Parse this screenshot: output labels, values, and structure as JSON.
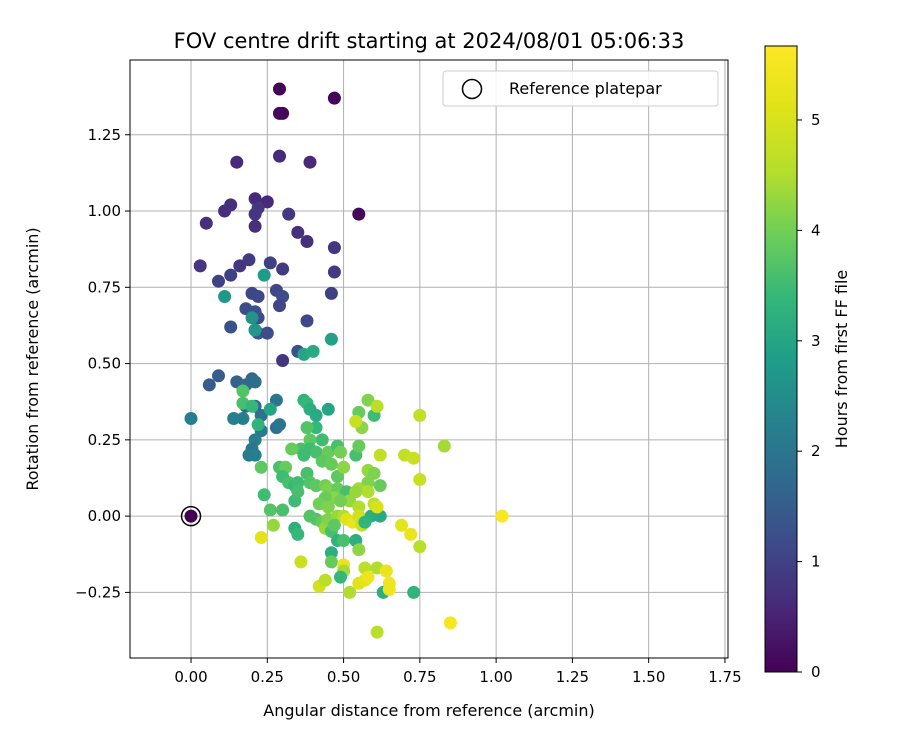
{
  "chart_data": {
    "type": "scatter",
    "title": "FOV centre drift starting at 2024/08/01 05:06:33",
    "xlabel": "Angular distance from reference (arcmin)",
    "ylabel": "Rotation from reference (arcmin)",
    "xlim": [
      -0.2,
      1.76
    ],
    "ylim": [
      -0.465,
      1.495
    ],
    "xticks": [
      0.0,
      0.25,
      0.5,
      0.75,
      1.0,
      1.25,
      1.5,
      1.75
    ],
    "xtick_labels": [
      "0.00",
      "0.25",
      "0.50",
      "0.75",
      "1.00",
      "1.25",
      "1.50",
      "1.75"
    ],
    "yticks": [
      -0.25,
      0.0,
      0.25,
      0.5,
      0.75,
      1.0,
      1.25
    ],
    "ytick_labels": [
      "−0.25",
      "0.00",
      "0.25",
      "0.50",
      "0.75",
      "1.00",
      "1.25"
    ],
    "grid": true,
    "legend": {
      "placement": "top-right",
      "entries": [
        "Reference platepar"
      ]
    },
    "reference_point": {
      "x": 0.0,
      "y": 0.0
    },
    "colorbar": {
      "label": "Hours from first FF file",
      "min": 0,
      "max": 5.67,
      "ticks": [
        0,
        1,
        2,
        3,
        4,
        5
      ],
      "tick_labels": [
        "0",
        "1",
        "2",
        "3",
        "4",
        "5"
      ],
      "colormap": "viridis"
    },
    "series": [
      {
        "points": [
          [
            0.29,
            1.4,
            0.05
          ],
          [
            0.47,
            1.37,
            0.05
          ],
          [
            0.3,
            1.32,
            0.1
          ],
          [
            0.29,
            1.32,
            0.1
          ],
          [
            0.55,
            0.99,
            0.1
          ],
          [
            0.15,
            1.16,
            0.6
          ],
          [
            0.29,
            1.18,
            0.6
          ],
          [
            0.39,
            1.16,
            0.6
          ],
          [
            0.21,
            1.04,
            0.6
          ],
          [
            0.25,
            1.03,
            0.6
          ],
          [
            0.13,
            1.02,
            0.7
          ],
          [
            0.11,
            1.0,
            0.7
          ],
          [
            0.21,
            0.99,
            0.8
          ],
          [
            0.32,
            0.99,
            0.8
          ],
          [
            0.22,
            1.01,
            0.8
          ],
          [
            0.05,
            0.96,
            0.7
          ],
          [
            0.21,
            0.95,
            0.7
          ],
          [
            0.35,
            0.93,
            0.7
          ],
          [
            0.38,
            0.9,
            0.7
          ],
          [
            0.47,
            0.88,
            0.8
          ],
          [
            0.03,
            0.82,
            0.8
          ],
          [
            0.16,
            0.82,
            0.8
          ],
          [
            0.19,
            0.84,
            0.9
          ],
          [
            0.26,
            0.83,
            1.0
          ],
          [
            0.3,
            0.81,
            0.9
          ],
          [
            0.47,
            0.8,
            0.9
          ],
          [
            0.13,
            0.79,
            1.0
          ],
          [
            0.09,
            0.77,
            1.0
          ],
          [
            0.28,
            0.74,
            1.1
          ],
          [
            0.46,
            0.73,
            1.0
          ],
          [
            0.2,
            0.73,
            1.1
          ],
          [
            0.22,
            0.72,
            1.1
          ],
          [
            0.3,
            0.72,
            1.2
          ],
          [
            0.29,
            0.69,
            1.1
          ],
          [
            0.18,
            0.68,
            1.2
          ],
          [
            0.21,
            0.67,
            1.3
          ],
          [
            0.22,
            0.65,
            1.2
          ],
          [
            0.38,
            0.64,
            1.1
          ],
          [
            0.21,
            0.61,
            1.3
          ],
          [
            0.22,
            0.6,
            1.4
          ],
          [
            0.25,
            0.6,
            1.2
          ],
          [
            0.13,
            0.62,
            1.3
          ],
          [
            0.3,
            0.51,
            0.8
          ],
          [
            0.35,
            0.54,
            1.3
          ],
          [
            0.06,
            0.43,
            1.5
          ],
          [
            0.09,
            0.46,
            1.5
          ],
          [
            0.15,
            0.44,
            1.6
          ],
          [
            0.18,
            0.43,
            1.7
          ],
          [
            0.2,
            0.45,
            1.7
          ],
          [
            0.21,
            0.44,
            1.8
          ],
          [
            0.0,
            0.32,
            2.2
          ],
          [
            0.14,
            0.32,
            2.2
          ],
          [
            0.17,
            0.32,
            2.2
          ],
          [
            0.21,
            0.36,
            1.7
          ],
          [
            0.18,
            0.36,
            1.8
          ],
          [
            0.23,
            0.33,
            1.9
          ],
          [
            0.28,
            0.38,
            2.0
          ],
          [
            0.28,
            0.29,
            1.9
          ],
          [
            0.29,
            0.3,
            2.0
          ],
          [
            0.23,
            0.28,
            2.1
          ],
          [
            0.21,
            0.25,
            2.2
          ],
          [
            0.2,
            0.22,
            2.0
          ],
          [
            0.19,
            0.2,
            2.1
          ],
          [
            0.21,
            0.2,
            2.2
          ],
          [
            0.24,
            0.79,
            2.8
          ],
          [
            0.11,
            0.72,
            2.7
          ],
          [
            0.2,
            0.65,
            2.6
          ],
          [
            0.21,
            0.61,
            2.7
          ],
          [
            0.37,
            0.53,
            3.0
          ],
          [
            0.4,
            0.54,
            3.1
          ],
          [
            0.46,
            0.58,
            2.9
          ],
          [
            0.17,
            0.41,
            3.7
          ],
          [
            0.17,
            0.37,
            3.6
          ],
          [
            0.2,
            0.36,
            3.4
          ],
          [
            0.22,
            0.3,
            3.3
          ],
          [
            0.26,
            0.35,
            3.0
          ],
          [
            0.37,
            0.38,
            3.3
          ],
          [
            0.38,
            0.37,
            3.4
          ],
          [
            0.39,
            0.35,
            3.2
          ],
          [
            0.41,
            0.33,
            3.1
          ],
          [
            0.45,
            0.35,
            3.0
          ],
          [
            0.41,
            0.29,
            3.4
          ],
          [
            0.43,
            0.25,
            3.5
          ],
          [
            0.38,
            0.29,
            3.7
          ],
          [
            0.39,
            0.25,
            3.8
          ],
          [
            0.36,
            0.22,
            3.6
          ],
          [
            0.39,
            0.22,
            3.5
          ],
          [
            0.37,
            0.2,
            3.5
          ],
          [
            0.41,
            0.21,
            3.6
          ],
          [
            0.33,
            0.22,
            3.9
          ],
          [
            0.45,
            0.21,
            3.9
          ],
          [
            0.43,
            0.18,
            3.8
          ],
          [
            0.48,
            0.23,
            3.6
          ],
          [
            0.49,
            0.21,
            4.0
          ],
          [
            0.46,
            0.17,
            3.9
          ],
          [
            0.48,
            0.13,
            3.8
          ],
          [
            0.5,
            0.16,
            4.2
          ],
          [
            0.23,
            0.16,
            3.8
          ],
          [
            0.29,
            0.16,
            3.6
          ],
          [
            0.31,
            0.16,
            3.9
          ],
          [
            0.3,
            0.13,
            3.5
          ],
          [
            0.32,
            0.11,
            3.6
          ],
          [
            0.34,
            0.1,
            3.4
          ],
          [
            0.35,
            0.11,
            3.5
          ],
          [
            0.38,
            0.14,
            3.6
          ],
          [
            0.39,
            0.11,
            3.7
          ],
          [
            0.41,
            0.1,
            3.8
          ],
          [
            0.44,
            0.1,
            4.0
          ],
          [
            0.45,
            0.09,
            4.1
          ],
          [
            0.48,
            0.09,
            3.9
          ],
          [
            0.51,
            0.08,
            3.6
          ],
          [
            0.54,
            0.2,
            3.6
          ],
          [
            0.55,
            0.34,
            3.9
          ],
          [
            0.56,
            0.29,
            4.2
          ],
          [
            0.55,
            0.23,
            3.9
          ],
          [
            0.58,
            0.38,
            4.1
          ],
          [
            0.6,
            0.33,
            3.5
          ],
          [
            0.61,
            0.36,
            4.6
          ],
          [
            0.54,
            0.31,
            4.8
          ],
          [
            0.62,
            0.2,
            4.7
          ],
          [
            0.58,
            0.15,
            4.3
          ],
          [
            0.6,
            0.14,
            4.1
          ],
          [
            0.62,
            0.1,
            3.9
          ],
          [
            0.58,
            0.11,
            4.1
          ],
          [
            0.55,
            0.09,
            4.4
          ],
          [
            0.54,
            0.08,
            4.3
          ],
          [
            0.58,
            0.08,
            4.5
          ],
          [
            0.52,
            0.05,
            4.3
          ],
          [
            0.55,
            0.03,
            4.5
          ],
          [
            0.6,
            0.04,
            4.7
          ],
          [
            0.47,
            0.06,
            4.2
          ],
          [
            0.49,
            0.05,
            4.0
          ],
          [
            0.44,
            0.06,
            3.9
          ],
          [
            0.42,
            0.04,
            4.0
          ],
          [
            0.45,
            0.03,
            4.1
          ],
          [
            0.39,
            0.0,
            3.7
          ],
          [
            0.41,
            -0.01,
            3.7
          ],
          [
            0.43,
            -0.02,
            3.9
          ],
          [
            0.44,
            -0.04,
            4.3
          ],
          [
            0.45,
            -0.01,
            4.1
          ],
          [
            0.48,
            0.0,
            4.3
          ],
          [
            0.5,
            0.0,
            4.5
          ],
          [
            0.51,
            -0.01,
            5.1
          ],
          [
            0.53,
            -0.02,
            5.3
          ],
          [
            0.55,
            0.0,
            4.9
          ],
          [
            0.56,
            -0.03,
            4.8
          ],
          [
            0.59,
            0.0,
            3.2
          ],
          [
            0.62,
            0.0,
            3.1
          ],
          [
            0.57,
            -0.02,
            3.3
          ],
          [
            0.24,
            0.07,
            3.5
          ],
          [
            0.26,
            0.02,
            3.7
          ],
          [
            0.3,
            0.02,
            3.6
          ],
          [
            0.34,
            0.05,
            3.5
          ],
          [
            0.35,
            0.08,
            3.6
          ],
          [
            0.27,
            -0.03,
            4.3
          ],
          [
            0.34,
            -0.04,
            3.2
          ],
          [
            0.35,
            -0.06,
            3.4
          ],
          [
            0.46,
            -0.05,
            3.6
          ],
          [
            0.47,
            -0.03,
            3.8
          ],
          [
            0.48,
            -0.08,
            3.3
          ],
          [
            0.5,
            -0.08,
            3.6
          ],
          [
            0.54,
            -0.08,
            3.2
          ],
          [
            0.55,
            -0.11,
            4.2
          ],
          [
            0.46,
            -0.12,
            3.2
          ],
          [
            0.46,
            -0.15,
            3.9
          ],
          [
            0.5,
            -0.16,
            5.3
          ],
          [
            0.5,
            -0.18,
            4.4
          ],
          [
            0.49,
            -0.2,
            3.4
          ],
          [
            0.42,
            -0.23,
            4.9
          ],
          [
            0.44,
            -0.21,
            4.6
          ],
          [
            0.52,
            -0.25,
            4.5
          ],
          [
            0.55,
            -0.22,
            5.1
          ],
          [
            0.57,
            -0.21,
            5.2
          ],
          [
            0.57,
            -0.17,
            4.6
          ],
          [
            0.58,
            -0.2,
            5.4
          ],
          [
            0.61,
            -0.17,
            4.5
          ],
          [
            0.63,
            -0.25,
            3.2
          ],
          [
            0.64,
            -0.18,
            5.3
          ],
          [
            0.65,
            -0.22,
            5.4
          ],
          [
            0.65,
            -0.24,
            5.4
          ],
          [
            0.61,
            -0.38,
            4.6
          ],
          [
            0.73,
            -0.25,
            3.3
          ],
          [
            0.69,
            -0.03,
            5.2
          ],
          [
            0.72,
            -0.06,
            5.3
          ],
          [
            0.75,
            -0.1,
            4.6
          ],
          [
            0.36,
            -0.15,
            4.8
          ],
          [
            0.23,
            -0.07,
            5.2
          ],
          [
            0.7,
            0.2,
            4.7
          ],
          [
            0.73,
            0.19,
            4.8
          ],
          [
            0.75,
            0.12,
            4.8
          ],
          [
            0.75,
            0.33,
            4.7
          ],
          [
            0.83,
            0.23,
            4.4
          ],
          [
            0.61,
            0.03,
            5.0
          ],
          [
            1.02,
            0.0,
            5.6
          ],
          [
            0.85,
            -0.35,
            5.5
          ]
        ]
      }
    ]
  }
}
